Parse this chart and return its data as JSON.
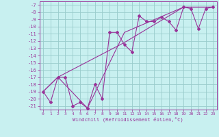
{
  "xlabel": "Windchill (Refroidissement éolien,°C)",
  "bg_color": "#c8f0f0",
  "line_color": "#993399",
  "grid_color": "#99cccc",
  "xlim": [
    -0.5,
    23.5
  ],
  "ylim": [
    -21.5,
    -6.5
  ],
  "xticks": [
    0,
    1,
    2,
    3,
    4,
    5,
    6,
    7,
    8,
    9,
    10,
    11,
    12,
    13,
    14,
    15,
    16,
    17,
    18,
    19,
    20,
    21,
    22,
    23
  ],
  "yticks": [
    -7,
    -8,
    -9,
    -10,
    -11,
    -12,
    -13,
    -14,
    -15,
    -16,
    -17,
    -18,
    -19,
    -20,
    -21
  ],
  "main_x": [
    0,
    1,
    2,
    3,
    4,
    5,
    6,
    7,
    8,
    9,
    10,
    11,
    12,
    13,
    14,
    15,
    16,
    17,
    18,
    19,
    20,
    21,
    22,
    23
  ],
  "main_y": [
    -19,
    -20.5,
    -17,
    -17,
    -21,
    -20.5,
    -21.3,
    -18,
    -20,
    -10.8,
    -10.8,
    -12.5,
    -13.5,
    -8.5,
    -9.3,
    -9.3,
    -8.7,
    -9.3,
    -10.5,
    -7.3,
    -7.5,
    -10.3,
    -7.5,
    -7.3
  ],
  "line1_x": [
    0,
    2,
    11,
    19,
    23
  ],
  "line1_y": [
    -19,
    -17,
    -12.2,
    -7.3,
    -7.3
  ],
  "line2_x": [
    0,
    2,
    6,
    11,
    19,
    23
  ],
  "line2_y": [
    -19,
    -17,
    -21.3,
    -10.8,
    -7.3,
    -7.3
  ]
}
